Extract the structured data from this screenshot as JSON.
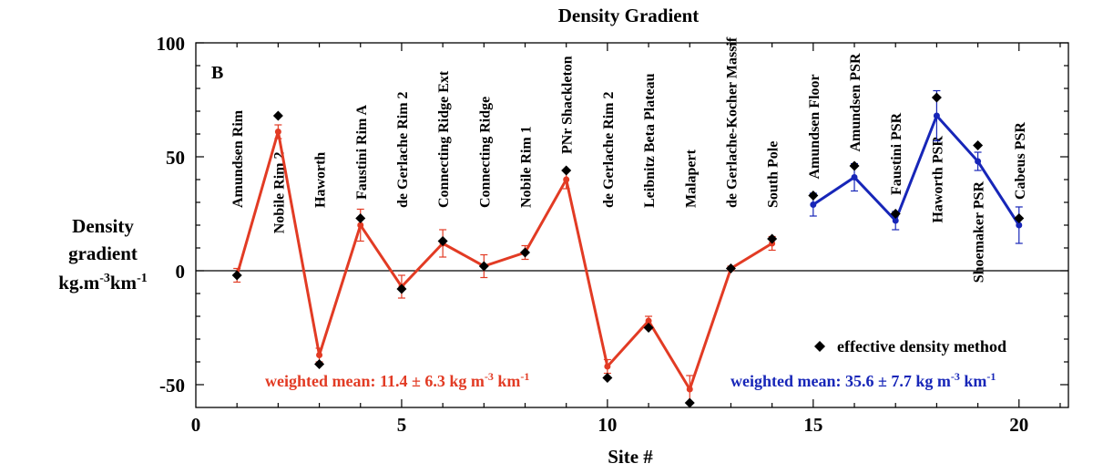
{
  "chart_data": {
    "type": "line",
    "title": "Density Gradient",
    "panel_label": "B",
    "xlabel": "Site #",
    "ylabel": [
      "Density",
      "gradient",
      "kg.m-3km-1"
    ],
    "xlim": [
      0,
      21.2
    ],
    "ylim": [
      -60,
      100
    ],
    "xticks": [
      0,
      5,
      10,
      15,
      20
    ],
    "yticks": [
      -50,
      0,
      50,
      100
    ],
    "zero_line": true,
    "series": [
      {
        "key": "red",
        "color": "#e23b24",
        "points": [
          {
            "x": 1,
            "y": -2,
            "err": 3,
            "label": "Amundsen Rim",
            "label_pos": "above"
          },
          {
            "x": 2,
            "y": 61,
            "err": 3,
            "label": "Nobile Rim 2",
            "label_pos": "below"
          },
          {
            "x": 3,
            "y": -37,
            "err": 3,
            "label": "Haworth",
            "label_pos": "above"
          },
          {
            "x": 4,
            "y": 20,
            "err": 7,
            "label": "Faustini Rim A",
            "label_pos": "above"
          },
          {
            "x": 5,
            "y": -7,
            "err": 5,
            "label": "de Gerlache Rim 2",
            "label_pos": "above"
          },
          {
            "x": 6,
            "y": 12,
            "err": 6,
            "label": "Connecting Ridge Ext",
            "label_pos": "above"
          },
          {
            "x": 7,
            "y": 2,
            "err": 5,
            "label": "Connecting Ridge",
            "label_pos": "above"
          },
          {
            "x": 8,
            "y": 8,
            "err": 3,
            "label": "Nobile Rim 1",
            "label_pos": "above"
          },
          {
            "x": 9,
            "y": 40,
            "err": 4,
            "label": "PNr Shackleton",
            "label_pos": "above"
          },
          {
            "x": 10,
            "y": -42,
            "err": 3,
            "label": "de Gerlache Rim 2",
            "label_pos": "above"
          },
          {
            "x": 11,
            "y": -22,
            "err": 2,
            "label": "Leibnitz Beta Plateau",
            "label_pos": "above"
          },
          {
            "x": 12,
            "y": -52,
            "err": 6,
            "label": "Malapert",
            "label_pos": "above"
          },
          {
            "x": 13,
            "y": 1,
            "err": 1,
            "label": "de Gerlache-Kocher Massif",
            "label_pos": "above"
          },
          {
            "x": 14,
            "y": 12,
            "err": 3,
            "label": "South Pole",
            "label_pos": "above"
          }
        ]
      },
      {
        "key": "blue",
        "color": "#1726b8",
        "points": [
          {
            "x": 15,
            "y": 29,
            "err": 5,
            "label": "Amundsen Floor",
            "label_pos": "above"
          },
          {
            "x": 16,
            "y": 41,
            "err": 6,
            "label": "Amundsen PSR",
            "label_pos": "above"
          },
          {
            "x": 17,
            "y": 22,
            "err": 4,
            "label": "Faustini PSR",
            "label_pos": "above"
          },
          {
            "x": 18,
            "y": 68,
            "err": 11,
            "label": "Haworth PSR",
            "label_pos": "below"
          },
          {
            "x": 19,
            "y": 48,
            "err": 4,
            "label": "Shoemaker PSR",
            "label_pos": "below"
          },
          {
            "x": 20,
            "y": 20,
            "err": 8,
            "label": "Cabeus PSR",
            "label_pos": "above"
          }
        ]
      }
    ],
    "effective_density_method": {
      "label": "effective density method",
      "color": "#000000",
      "x": [
        1,
        2,
        3,
        4,
        5,
        6,
        7,
        8,
        9,
        10,
        11,
        12,
        13,
        14,
        15,
        16,
        17,
        18,
        19,
        20
      ],
      "y": [
        -2,
        68,
        -41,
        23,
        -8,
        13,
        2,
        8,
        44,
        -47,
        -25,
        -58,
        1,
        14,
        33,
        46,
        25,
        76,
        55,
        23
      ]
    },
    "annotations": [
      {
        "key": "red_mean",
        "text": "weighted mean: 11.4 ± 6.3 kg m",
        "exp1": "-3",
        "mid": " km",
        "exp2": "-1",
        "color": "#e23b24"
      },
      {
        "key": "blue_mean",
        "text": "weighted mean: 35.6 ± 7.7 kg m",
        "exp1": "-3",
        "mid": " km",
        "exp2": "-1",
        "color": "#1726b8"
      }
    ]
  }
}
